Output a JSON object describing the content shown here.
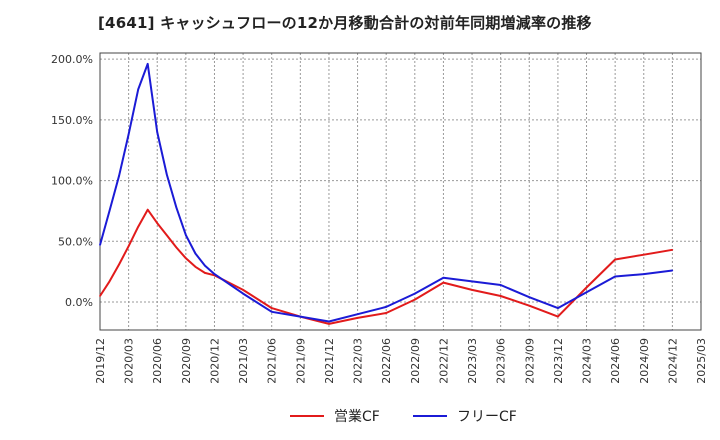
{
  "title": "[4641]  キャッシュフローの12か月移動合計の対前年同期増減率の推移",
  "chart_data": {
    "type": "line",
    "title": "[4641]  キャッシュフローの12か月移動合計の対前年同期増減率の推移",
    "xlabel": "",
    "ylabel": "",
    "x_ticks": [
      "2019/12",
      "2020/03",
      "2020/06",
      "2020/09",
      "2020/12",
      "2021/03",
      "2021/06",
      "2021/09",
      "2021/12",
      "2022/03",
      "2022/06",
      "2022/09",
      "2022/12",
      "2023/03",
      "2023/06",
      "2023/09",
      "2023/12",
      "2024/03",
      "2024/06",
      "2024/09",
      "2024/12",
      "2025/03"
    ],
    "y_ticks": [
      "200.0%",
      "150.0%",
      "100.0%",
      "50.0%",
      "0.0%"
    ],
    "ylim": [
      -23,
      205
    ],
    "grid": true,
    "legend_position": "bottom-center",
    "series": [
      {
        "name": "営業CF",
        "color": "#e21b1b",
        "points": [
          [
            "2019/12",
            5
          ],
          [
            "2020/01",
            17
          ],
          [
            "2020/02",
            31
          ],
          [
            "2020/03",
            46
          ],
          [
            "2020/04",
            62
          ],
          [
            "2020/05",
            76
          ],
          [
            "2020/06",
            65
          ],
          [
            "2020/07",
            55
          ],
          [
            "2020/08",
            45
          ],
          [
            "2020/09",
            36
          ],
          [
            "2020/10",
            29
          ],
          [
            "2020/11",
            24
          ],
          [
            "2020/12",
            22
          ],
          [
            "2021/03",
            10
          ],
          [
            "2021/06",
            -5
          ],
          [
            "2021/09",
            -12
          ],
          [
            "2021/12",
            -18
          ],
          [
            "2022/03",
            -13
          ],
          [
            "2022/06",
            -9
          ],
          [
            "2022/09",
            2
          ],
          [
            "2022/12",
            16
          ],
          [
            "2023/03",
            10
          ],
          [
            "2023/06",
            5
          ],
          [
            "2023/09",
            -3
          ],
          [
            "2023/12",
            -12
          ],
          [
            "2024/03",
            12
          ],
          [
            "2024/06",
            35
          ],
          [
            "2024/09",
            39
          ],
          [
            "2024/12",
            43
          ]
        ]
      },
      {
        "name": "フリーCF",
        "color": "#1b1bd6",
        "points": [
          [
            "2019/12",
            47
          ],
          [
            "2020/01",
            75
          ],
          [
            "2020/02",
            104
          ],
          [
            "2020/03",
            138
          ],
          [
            "2020/04",
            175
          ],
          [
            "2020/05",
            196
          ],
          [
            "2020/06",
            140
          ],
          [
            "2020/07",
            105
          ],
          [
            "2020/08",
            78
          ],
          [
            "2020/09",
            55
          ],
          [
            "2020/10",
            40
          ],
          [
            "2020/11",
            30
          ],
          [
            "2020/12",
            23
          ],
          [
            "2021/03",
            7
          ],
          [
            "2021/06",
            -8
          ],
          [
            "2021/09",
            -12
          ],
          [
            "2021/12",
            -16
          ],
          [
            "2022/03",
            -10
          ],
          [
            "2022/06",
            -4
          ],
          [
            "2022/09",
            7
          ],
          [
            "2022/12",
            20
          ],
          [
            "2023/03",
            17
          ],
          [
            "2023/06",
            14
          ],
          [
            "2023/09",
            4
          ],
          [
            "2023/12",
            -5
          ],
          [
            "2024/03",
            8
          ],
          [
            "2024/06",
            21
          ],
          [
            "2024/09",
            23
          ],
          [
            "2024/12",
            26
          ]
        ]
      }
    ]
  }
}
